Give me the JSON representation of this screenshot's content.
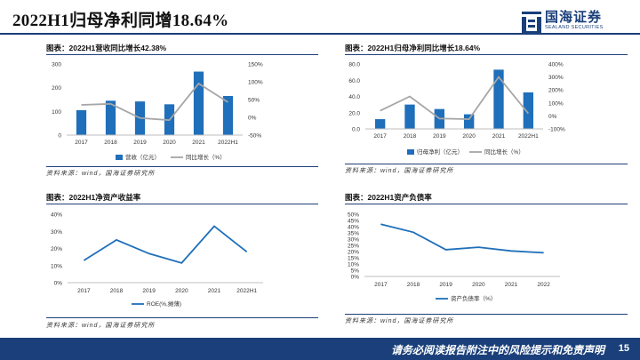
{
  "page": {
    "title": "2022H1归母净利同增18.64%",
    "logo_cn": "国海证券",
    "logo_en": "SEALAND SECURITIES",
    "footer_disclaimer": "请务必阅读报告附注中的风险提示和免责声明",
    "page_number": "15"
  },
  "colors": {
    "bar": "#1f6fba",
    "line_gray": "#a6a6a6",
    "line_blue": "#1f6fba",
    "brand": "#1a3f7a"
  },
  "panels": [
    {
      "title": "图表：2022H1营收同比增长42.38%",
      "source": "资料来源：wind，国海证券研究所"
    },
    {
      "title": "图表：2022H1归母净利同比增长18.64%",
      "source": "资料来源：wind，国海证券研究所"
    },
    {
      "title": "图表：2022H1净资产收益率",
      "source": "资料来源：wind，国海证券研究所"
    },
    {
      "title": "图表：2022H1资产负债率",
      "source": "资料来源：wind，国海证券研究所"
    }
  ],
  "chart_data": [
    {
      "type": "bar",
      "categories": [
        "2017",
        "2018",
        "2019",
        "2020",
        "2021",
        "2022H1"
      ],
      "series": [
        {
          "name": "营收（亿元）",
          "axis": "left",
          "kind": "bar",
          "values": [
            105,
            145,
            142,
            130,
            268,
            165
          ]
        },
        {
          "name": "同比增长（%）",
          "axis": "right",
          "kind": "line",
          "values": [
            35,
            38,
            -2,
            -8,
            95,
            42.38
          ]
        }
      ],
      "y_left": {
        "min": 0,
        "max": 300,
        "ticks": [
          "0",
          "100",
          "200",
          "300"
        ]
      },
      "y_right": {
        "min": -50,
        "max": 150,
        "ticks": [
          "-50%",
          "0%",
          "50%",
          "100%",
          "150%"
        ]
      }
    },
    {
      "type": "bar",
      "categories": [
        "2017",
        "2018",
        "2019",
        "2020",
        "2021",
        "2022H1"
      ],
      "series": [
        {
          "name": "归母净利（亿元）",
          "axis": "left",
          "kind": "bar",
          "values": [
            12,
            30,
            24.5,
            18,
            73,
            45
          ]
        },
        {
          "name": "同比增长（%）",
          "axis": "right",
          "kind": "line",
          "values": [
            40,
            150,
            -20,
            -25,
            300,
            18.64
          ]
        }
      ],
      "y_left": {
        "min": 0,
        "max": 80,
        "ticks": [
          "0.0",
          "20.0",
          "40.0",
          "60.0",
          "80.0"
        ]
      },
      "y_right": {
        "min": -100,
        "max": 400,
        "ticks": [
          "-100%",
          "0%",
          "100%",
          "200%",
          "300%",
          "400%"
        ]
      }
    },
    {
      "type": "line",
      "categories": [
        "2017",
        "2018",
        "2019",
        "2020",
        "2021",
        "2022H1"
      ],
      "series": [
        {
          "name": "ROE(%,摊薄)",
          "values": [
            13,
            25,
            17,
            11.5,
            33,
            18
          ]
        }
      ],
      "y": {
        "min": 0,
        "max": 40,
        "ticks": [
          "0%",
          "10%",
          "20%",
          "30%",
          "40%"
        ]
      }
    },
    {
      "type": "line",
      "categories": [
        "2017",
        "2018",
        "2019",
        "2020",
        "2021",
        "2022"
      ],
      "series": [
        {
          "name": "资产负债率（%）",
          "values": [
            42,
            35.5,
            21.5,
            23.5,
            20.5,
            19
          ]
        }
      ],
      "y": {
        "min": 0,
        "max": 50,
        "ticks": [
          "0%",
          "5%",
          "10%",
          "15%",
          "20%",
          "25%",
          "30%",
          "35%",
          "40%",
          "45%",
          "50%"
        ]
      }
    }
  ]
}
